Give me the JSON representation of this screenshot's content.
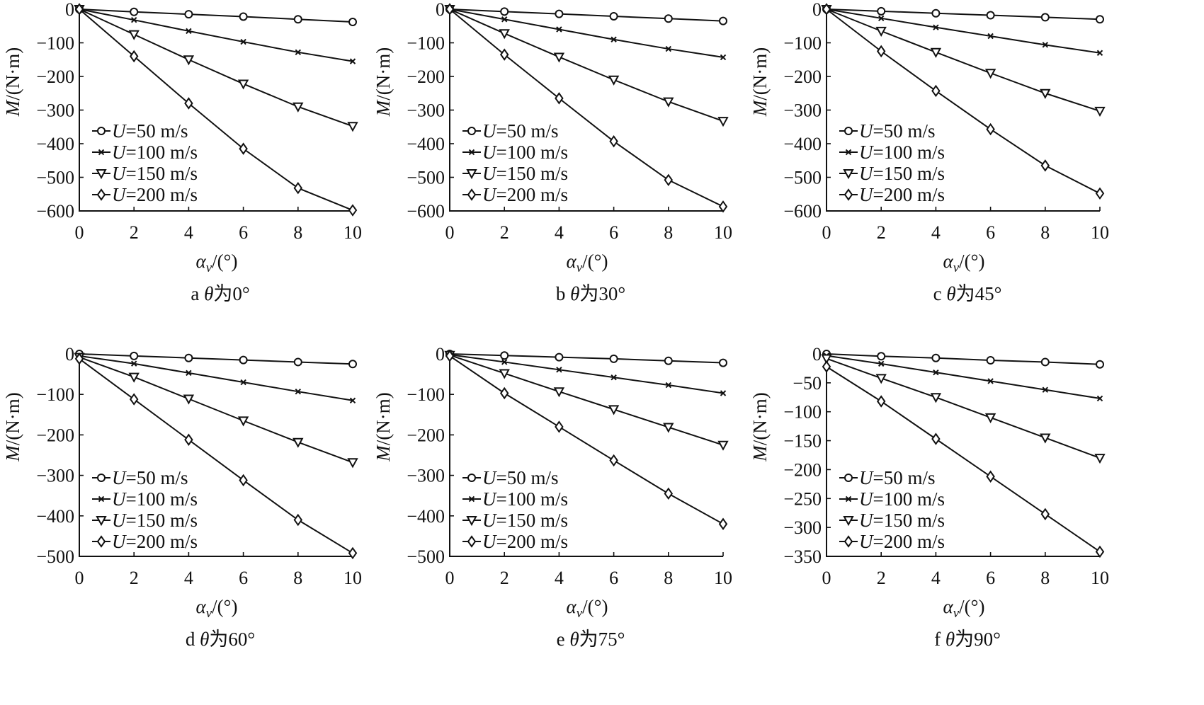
{
  "legend_labels": [
    "U=50 m/s",
    "U=100 m/s",
    "U=150 m/s",
    "U=200 m/s"
  ],
  "chart_data": [
    {
      "type": "line",
      "caption": "a θ为0°",
      "xlabel": "αv/(°)",
      "ylabel": "M/(N·m)",
      "x": [
        0,
        2,
        4,
        6,
        8,
        10
      ],
      "xticks": [
        0,
        2,
        4,
        6,
        8,
        10
      ],
      "xlim": [
        0,
        10
      ],
      "ylim": [
        -600,
        0
      ],
      "yticks": [
        0,
        -100,
        -200,
        -300,
        -400,
        -500,
        -600
      ],
      "legend_position": "bottom-left",
      "series": [
        {
          "name": "U=50 m/s",
          "marker": "circle",
          "values": [
            0,
            -8,
            -15,
            -22,
            -30,
            -38
          ]
        },
        {
          "name": "U=100 m/s",
          "marker": "x",
          "values": [
            0,
            -32,
            -65,
            -97,
            -128,
            -155
          ]
        },
        {
          "name": "U=150 m/s",
          "marker": "triangle-down",
          "values": [
            0,
            -75,
            -150,
            -222,
            -290,
            -348
          ]
        },
        {
          "name": "U=200 m/s",
          "marker": "diamond",
          "values": [
            0,
            -140,
            -280,
            -415,
            -532,
            -598
          ]
        }
      ]
    },
    {
      "type": "line",
      "caption": "b θ为30°",
      "xlabel": "αv/(°)",
      "ylabel": "M/(N·m)",
      "x": [
        0,
        2,
        4,
        6,
        8,
        10
      ],
      "xticks": [
        0,
        2,
        4,
        6,
        8,
        10
      ],
      "xlim": [
        0,
        10
      ],
      "ylim": [
        -600,
        0
      ],
      "yticks": [
        0,
        -100,
        -200,
        -300,
        -400,
        -500,
        -600
      ],
      "legend_position": "bottom-left",
      "series": [
        {
          "name": "U=50 m/s",
          "marker": "circle",
          "values": [
            0,
            -7,
            -14,
            -21,
            -28,
            -35
          ]
        },
        {
          "name": "U=100 m/s",
          "marker": "x",
          "values": [
            0,
            -30,
            -60,
            -90,
            -118,
            -143
          ]
        },
        {
          "name": "U=150 m/s",
          "marker": "triangle-down",
          "values": [
            0,
            -72,
            -142,
            -210,
            -275,
            -333
          ]
        },
        {
          "name": "U=200 m/s",
          "marker": "diamond",
          "values": [
            0,
            -135,
            -265,
            -393,
            -508,
            -587
          ]
        }
      ]
    },
    {
      "type": "line",
      "caption": "c θ为45°",
      "xlabel": "αv/(°)",
      "ylabel": "M/(N·m)",
      "x": [
        0,
        2,
        4,
        6,
        8,
        10
      ],
      "xticks": [
        0,
        2,
        4,
        6,
        8,
        10
      ],
      "xlim": [
        0,
        10
      ],
      "ylim": [
        -600,
        0
      ],
      "yticks": [
        0,
        -100,
        -200,
        -300,
        -400,
        -500,
        -600
      ],
      "legend_position": "bottom-left",
      "series": [
        {
          "name": "U=50 m/s",
          "marker": "circle",
          "values": [
            0,
            -6,
            -12,
            -18,
            -24,
            -30
          ]
        },
        {
          "name": "U=100 m/s",
          "marker": "x",
          "values": [
            0,
            -27,
            -54,
            -80,
            -106,
            -130
          ]
        },
        {
          "name": "U=150 m/s",
          "marker": "triangle-down",
          "values": [
            0,
            -65,
            -128,
            -190,
            -250,
            -303
          ]
        },
        {
          "name": "U=200 m/s",
          "marker": "diamond",
          "values": [
            0,
            -125,
            -243,
            -357,
            -465,
            -548
          ]
        }
      ]
    },
    {
      "type": "line",
      "caption": "d θ为60°",
      "xlabel": "αv/(°)",
      "ylabel": "M/(N·m)",
      "x": [
        0,
        2,
        4,
        6,
        8,
        10
      ],
      "xticks": [
        0,
        2,
        4,
        6,
        8,
        10
      ],
      "xlim": [
        0,
        10
      ],
      "ylim": [
        -500,
        0
      ],
      "yticks": [
        0,
        -100,
        -200,
        -300,
        -400,
        -500
      ],
      "legend_position": "bottom-left",
      "series": [
        {
          "name": "U=50 m/s",
          "marker": "circle",
          "values": [
            0,
            -5,
            -10,
            -15,
            -20,
            -25
          ]
        },
        {
          "name": "U=100 m/s",
          "marker": "x",
          "values": [
            -5,
            -24,
            -47,
            -70,
            -93,
            -115
          ]
        },
        {
          "name": "U=150 m/s",
          "marker": "triangle-down",
          "values": [
            -8,
            -57,
            -111,
            -165,
            -218,
            -268
          ]
        },
        {
          "name": "U=200 m/s",
          "marker": "diamond",
          "values": [
            -12,
            -112,
            -212,
            -312,
            -410,
            -492
          ]
        }
      ]
    },
    {
      "type": "line",
      "caption": "e θ为75°",
      "xlabel": "αv/(°)",
      "ylabel": "M/(N·m)",
      "x": [
        0,
        2,
        4,
        6,
        8,
        10
      ],
      "xticks": [
        0,
        2,
        4,
        6,
        8,
        10
      ],
      "xlim": [
        0,
        10
      ],
      "ylim": [
        -500,
        0
      ],
      "yticks": [
        0,
        -100,
        -200,
        -300,
        -400,
        -500
      ],
      "legend_position": "bottom-left",
      "series": [
        {
          "name": "U=50 m/s",
          "marker": "circle",
          "values": [
            0,
            -4,
            -8,
            -12,
            -17,
            -22
          ]
        },
        {
          "name": "U=100 m/s",
          "marker": "x",
          "values": [
            -2,
            -20,
            -39,
            -58,
            -77,
            -97
          ]
        },
        {
          "name": "U=150 m/s",
          "marker": "triangle-down",
          "values": [
            -3,
            -48,
            -93,
            -137,
            -181,
            -225
          ]
        },
        {
          "name": "U=200 m/s",
          "marker": "diamond",
          "values": [
            -5,
            -97,
            -180,
            -263,
            -345,
            -420
          ]
        }
      ]
    },
    {
      "type": "line",
      "caption": "f θ为90°",
      "xlabel": "αv/(°)",
      "ylabel": "M/(N·m)",
      "x": [
        0,
        2,
        4,
        6,
        8,
        10
      ],
      "xticks": [
        0,
        2,
        4,
        6,
        8,
        10
      ],
      "xlim": [
        0,
        10
      ],
      "ylim": [
        -350,
        0
      ],
      "yticks": [
        0,
        -50,
        -100,
        -150,
        -200,
        -250,
        -300,
        -350
      ],
      "legend_position": "bottom-left",
      "series": [
        {
          "name": "U=50 m/s",
          "marker": "circle",
          "values": [
            0,
            -4,
            -7,
            -11,
            -14,
            -18
          ]
        },
        {
          "name": "U=100 m/s",
          "marker": "x",
          "values": [
            -3,
            -17,
            -32,
            -47,
            -62,
            -77
          ]
        },
        {
          "name": "U=150 m/s",
          "marker": "triangle-down",
          "values": [
            -8,
            -42,
            -75,
            -110,
            -145,
            -180
          ]
        },
        {
          "name": "U=200 m/s",
          "marker": "diamond",
          "values": [
            -22,
            -82,
            -147,
            -212,
            -277,
            -342
          ]
        }
      ]
    }
  ]
}
